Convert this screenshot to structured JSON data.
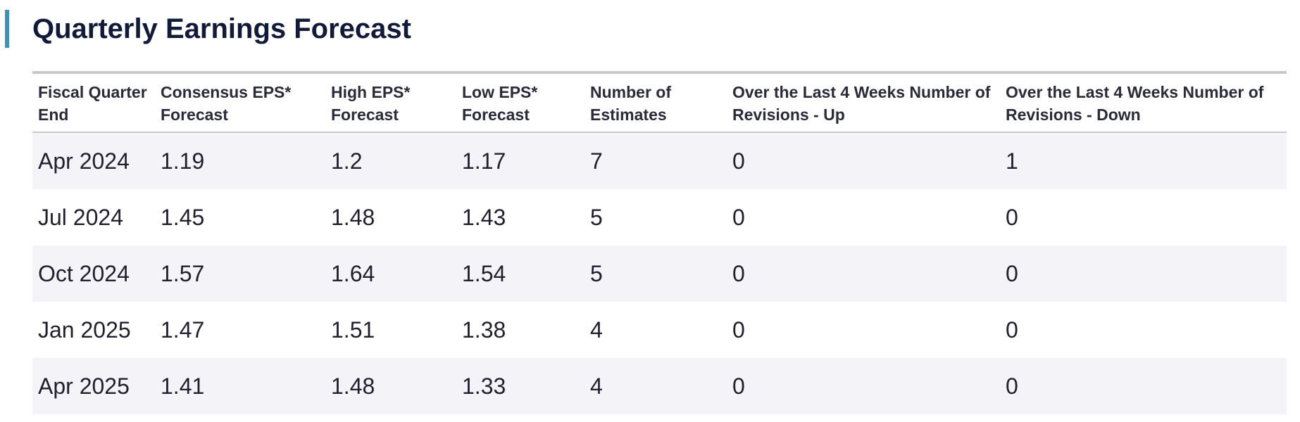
{
  "page": {
    "title": "Quarterly Earnings Forecast",
    "accent_color": "#3c93b5"
  },
  "table": {
    "columns": [
      "Fiscal Quarter End",
      "Consensus EPS* Forecast",
      "High EPS* Forecast",
      "Low EPS* Forecast",
      "Number of Estimates",
      "Over the Last 4 Weeks Number of Revisions - Up",
      "Over the Last 4 Weeks Number of Revisions - Down"
    ],
    "rows": [
      [
        "Apr 2024",
        "1.19",
        "1.2",
        "1.17",
        "7",
        "0",
        "1"
      ],
      [
        "Jul 2024",
        "1.45",
        "1.48",
        "1.43",
        "5",
        "0",
        "0"
      ],
      [
        "Oct 2024",
        "1.57",
        "1.64",
        "1.54",
        "5",
        "0",
        "0"
      ],
      [
        "Jan 2025",
        "1.47",
        "1.51",
        "1.38",
        "4",
        "0",
        "0"
      ],
      [
        "Apr 2025",
        "1.41",
        "1.48",
        "1.33",
        "4",
        "0",
        "0"
      ]
    ]
  }
}
